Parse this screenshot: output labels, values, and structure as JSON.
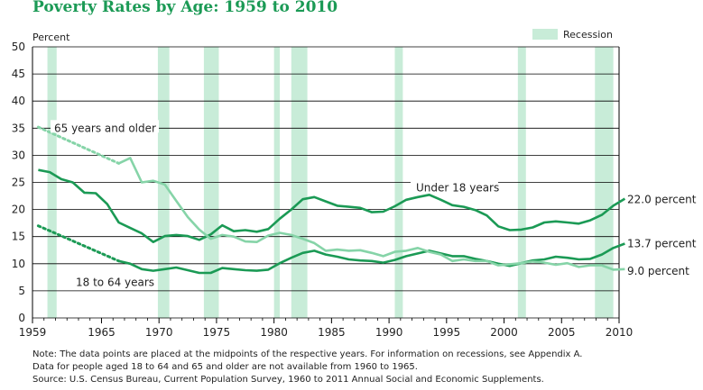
{
  "title": "Poverty Rates by Age: 1959 to 2010",
  "notes": {
    "line1": "Note: The data points are placed at the midpoints of the respective years. For information on recessions, see Appendix A.",
    "line2": "Data for people aged 18 to 64 and 65 and older are not available from 1960 to 1965.",
    "line3": "Source: U.S. Census Bureau, Current Population Survey, 1960 to 2011 Annual Social and Economic Supplements."
  },
  "chart_data": {
    "type": "line",
    "ylabel": "Percent",
    "xlim": [
      1959,
      2010
    ],
    "ylim": [
      0,
      50
    ],
    "y_ticks": [
      0,
      5,
      10,
      15,
      20,
      25,
      30,
      35,
      40,
      45,
      50
    ],
    "x_ticks": [
      "1959",
      "1965",
      "1970",
      "1975",
      "1980",
      "1985",
      "1990",
      "1995",
      "2000",
      "2005",
      "2010"
    ],
    "grid": true,
    "legend": {
      "label": "Recession",
      "placement": "top-right",
      "color": "#c8ecd8"
    },
    "recessions": [
      [
        1960.3,
        1961.1
      ],
      [
        1969.9,
        1970.9
      ],
      [
        1973.9,
        1975.2
      ],
      [
        1980.0,
        1980.5
      ],
      [
        1981.5,
        1982.9
      ],
      [
        1990.5,
        1991.2
      ],
      [
        2001.2,
        2001.9
      ],
      [
        2007.9,
        2009.5
      ]
    ],
    "colors": {
      "under18": "#1b9a55",
      "age18to64": "#1b9a55",
      "over65": "#86d4a8",
      "recession": "#c8ecd8",
      "grid": "#000000"
    },
    "series": [
      {
        "name": "Under 18 years",
        "end_label": "22.0 percent",
        "color": "#1b9a55",
        "points": [
          [
            1959.5,
            27.3
          ],
          [
            1960.5,
            26.9
          ],
          [
            1961.5,
            25.6
          ],
          [
            1962.5,
            25.0
          ],
          [
            1963.5,
            23.1
          ],
          [
            1964.5,
            23.0
          ],
          [
            1965.5,
            21.0
          ],
          [
            1966.5,
            17.6
          ],
          [
            1967.5,
            16.6
          ],
          [
            1968.5,
            15.6
          ],
          [
            1969.5,
            14.0
          ],
          [
            1970.5,
            15.1
          ],
          [
            1971.5,
            15.3
          ],
          [
            1972.5,
            15.1
          ],
          [
            1973.5,
            14.4
          ],
          [
            1974.5,
            15.4
          ],
          [
            1975.5,
            17.1
          ],
          [
            1976.5,
            16.0
          ],
          [
            1977.5,
            16.2
          ],
          [
            1978.5,
            15.9
          ],
          [
            1979.5,
            16.4
          ],
          [
            1980.5,
            18.3
          ],
          [
            1981.5,
            20.0
          ],
          [
            1982.5,
            21.9
          ],
          [
            1983.5,
            22.3
          ],
          [
            1984.5,
            21.5
          ],
          [
            1985.5,
            20.7
          ],
          [
            1986.5,
            20.5
          ],
          [
            1987.5,
            20.3
          ],
          [
            1988.5,
            19.5
          ],
          [
            1989.5,
            19.6
          ],
          [
            1990.5,
            20.6
          ],
          [
            1991.5,
            21.8
          ],
          [
            1992.5,
            22.3
          ],
          [
            1993.5,
            22.7
          ],
          [
            1994.5,
            21.8
          ],
          [
            1995.5,
            20.8
          ],
          [
            1996.5,
            20.5
          ],
          [
            1997.5,
            19.9
          ],
          [
            1998.5,
            18.9
          ],
          [
            1999.5,
            16.9
          ],
          [
            2000.5,
            16.2
          ],
          [
            2001.5,
            16.3
          ],
          [
            2002.5,
            16.7
          ],
          [
            2003.5,
            17.6
          ],
          [
            2004.5,
            17.8
          ],
          [
            2005.5,
            17.6
          ],
          [
            2006.5,
            17.4
          ],
          [
            2007.5,
            18.0
          ],
          [
            2008.5,
            19.0
          ],
          [
            2009.5,
            20.7
          ],
          [
            2010.5,
            22.0
          ]
        ]
      },
      {
        "name": "18 to 64 years",
        "end_label": "13.7 percent",
        "color": "#1b9a55",
        "gap_points": [
          [
            1959.5,
            17.0
          ],
          [
            1966.5,
            10.5
          ]
        ],
        "points": [
          [
            1966.5,
            10.5
          ],
          [
            1967.5,
            10.0
          ],
          [
            1968.5,
            9.0
          ],
          [
            1969.5,
            8.7
          ],
          [
            1970.5,
            9.0
          ],
          [
            1971.5,
            9.3
          ],
          [
            1972.5,
            8.8
          ],
          [
            1973.5,
            8.3
          ],
          [
            1974.5,
            8.3
          ],
          [
            1975.5,
            9.2
          ],
          [
            1976.5,
            9.0
          ],
          [
            1977.5,
            8.8
          ],
          [
            1978.5,
            8.7
          ],
          [
            1979.5,
            8.9
          ],
          [
            1980.5,
            10.1
          ],
          [
            1981.5,
            11.1
          ],
          [
            1982.5,
            12.0
          ],
          [
            1983.5,
            12.4
          ],
          [
            1984.5,
            11.7
          ],
          [
            1985.5,
            11.3
          ],
          [
            1986.5,
            10.8
          ],
          [
            1987.5,
            10.6
          ],
          [
            1988.5,
            10.5
          ],
          [
            1989.5,
            10.2
          ],
          [
            1990.5,
            10.7
          ],
          [
            1991.5,
            11.4
          ],
          [
            1992.5,
            11.9
          ],
          [
            1993.5,
            12.4
          ],
          [
            1994.5,
            11.9
          ],
          [
            1995.5,
            11.4
          ],
          [
            1996.5,
            11.4
          ],
          [
            1997.5,
            10.9
          ],
          [
            1998.5,
            10.5
          ],
          [
            1999.5,
            10.0
          ],
          [
            2000.5,
            9.6
          ],
          [
            2001.5,
            10.1
          ],
          [
            2002.5,
            10.6
          ],
          [
            2003.5,
            10.8
          ],
          [
            2004.5,
            11.3
          ],
          [
            2005.5,
            11.1
          ],
          [
            2006.5,
            10.8
          ],
          [
            2007.5,
            10.9
          ],
          [
            2008.5,
            11.7
          ],
          [
            2009.5,
            12.9
          ],
          [
            2010.5,
            13.7
          ]
        ]
      },
      {
        "name": "65 years and older",
        "end_label": "9.0 percent",
        "color": "#86d4a8",
        "gap_points": [
          [
            1959.5,
            35.2
          ],
          [
            1966.5,
            28.5
          ]
        ],
        "points": [
          [
            1966.5,
            28.5
          ],
          [
            1967.5,
            29.5
          ],
          [
            1968.5,
            25.0
          ],
          [
            1969.5,
            25.3
          ],
          [
            1970.5,
            24.6
          ],
          [
            1971.5,
            21.6
          ],
          [
            1972.5,
            18.6
          ],
          [
            1973.5,
            16.3
          ],
          [
            1974.5,
            14.6
          ],
          [
            1975.5,
            15.3
          ],
          [
            1976.5,
            15.0
          ],
          [
            1977.5,
            14.1
          ],
          [
            1978.5,
            14.0
          ],
          [
            1979.5,
            15.2
          ],
          [
            1980.5,
            15.7
          ],
          [
            1981.5,
            15.3
          ],
          [
            1982.5,
            14.6
          ],
          [
            1983.5,
            13.8
          ],
          [
            1984.5,
            12.4
          ],
          [
            1985.5,
            12.6
          ],
          [
            1986.5,
            12.4
          ],
          [
            1987.5,
            12.5
          ],
          [
            1988.5,
            12.0
          ],
          [
            1989.5,
            11.4
          ],
          [
            1990.5,
            12.2
          ],
          [
            1991.5,
            12.4
          ],
          [
            1992.5,
            12.9
          ],
          [
            1993.5,
            12.2
          ],
          [
            1994.5,
            11.7
          ],
          [
            1995.5,
            10.5
          ],
          [
            1996.5,
            10.8
          ],
          [
            1997.5,
            10.5
          ],
          [
            1998.5,
            10.5
          ],
          [
            1999.5,
            9.7
          ],
          [
            2000.5,
            9.9
          ],
          [
            2001.5,
            10.1
          ],
          [
            2002.5,
            10.4
          ],
          [
            2003.5,
            10.2
          ],
          [
            2004.5,
            9.8
          ],
          [
            2005.5,
            10.1
          ],
          [
            2006.5,
            9.4
          ],
          [
            2007.5,
            9.7
          ],
          [
            2008.5,
            9.7
          ],
          [
            2009.5,
            8.9
          ],
          [
            2010.5,
            9.0
          ]
        ]
      }
    ],
    "annotations": [
      {
        "text": "65 years and older",
        "target": "over65"
      },
      {
        "text": "Under 18 years",
        "target": "under18"
      },
      {
        "text": "18 to 64 years",
        "target": "age18to64"
      }
    ]
  }
}
